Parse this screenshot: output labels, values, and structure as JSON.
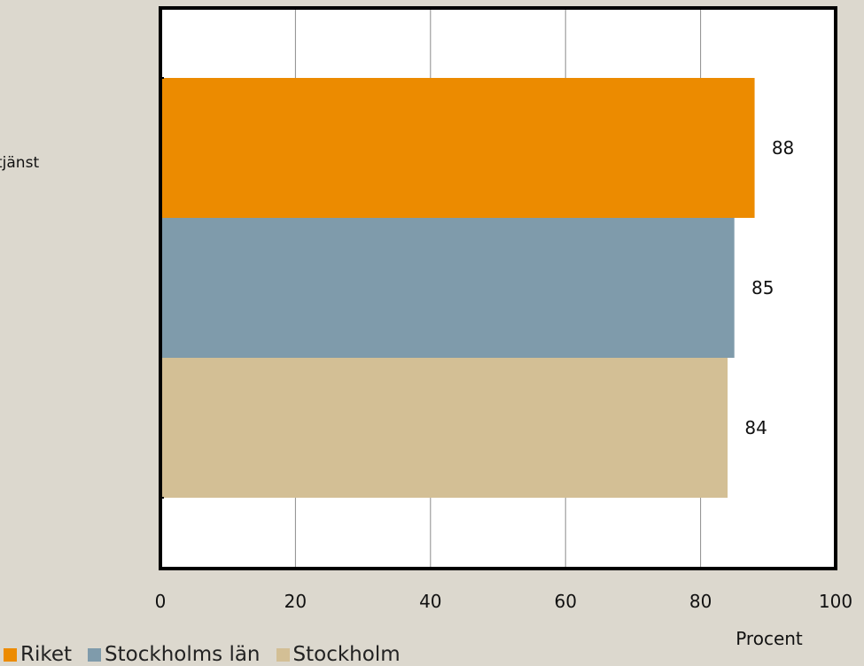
{
  "chart_data": {
    "type": "bar",
    "orientation": "horizontal",
    "categories": [
      "tjänst"
    ],
    "series": [
      {
        "name": "Riket",
        "values": [
          88
        ],
        "color": "#ec8b00"
      },
      {
        "name": "Stockholms län",
        "values": [
          85
        ],
        "color": "#7f9bab"
      },
      {
        "name": "Stockholm",
        "values": [
          84
        ],
        "color": "#d3bf95"
      }
    ],
    "xlabel": "Procent",
    "ylabel": "",
    "xlim": [
      0,
      100
    ],
    "x_ticks": [
      "0",
      "20",
      "40",
      "60",
      "80",
      "100"
    ],
    "grid": true,
    "legend_position": "bottom-left",
    "data_labels": [
      "88",
      "85",
      "84"
    ]
  }
}
